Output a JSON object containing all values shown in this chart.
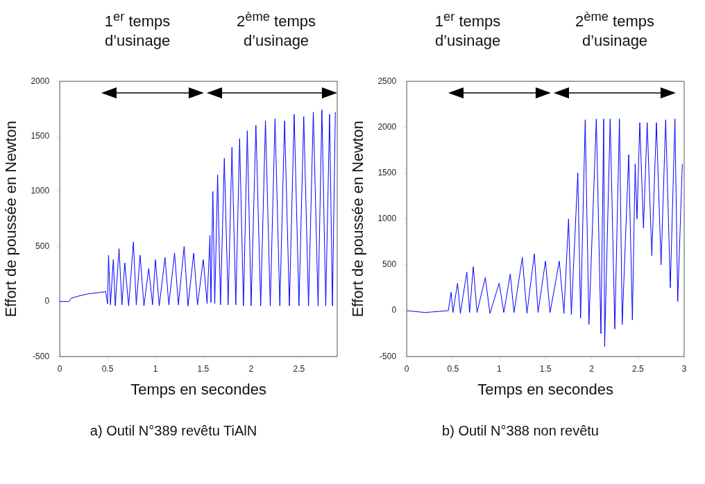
{
  "chart_data": [
    {
      "type": "line",
      "xlabel": "Temps en secondes",
      "ylabel": "Effort de poussée en Newton",
      "color": "#0000ff",
      "grid": false,
      "marker": "none",
      "xlim": [
        0,
        2.9
      ],
      "ylim": [
        -500,
        2000
      ],
      "xticks": [
        0,
        0.5,
        1,
        1.5,
        2,
        2.5
      ],
      "yticks": [
        -500,
        0,
        500,
        1000,
        1500,
        2000
      ],
      "annotations": [
        "1$^{er}$ temps d’usinage",
        "2$^{ème}$ temps d’usinage",
        "a) Outil N°389 revêtu TiAlN"
      ],
      "x": [
        0,
        0.1,
        0.12,
        0.2,
        0.3,
        0.4,
        0.48,
        0.5,
        0.51,
        0.53,
        0.56,
        0.58,
        0.62,
        0.65,
        0.68,
        0.72,
        0.77,
        0.8,
        0.84,
        0.88,
        0.93,
        0.97,
        1.0,
        1.04,
        1.1,
        1.14,
        1.2,
        1.24,
        1.3,
        1.34,
        1.4,
        1.44,
        1.5,
        1.54,
        1.57,
        1.58,
        1.6,
        1.62,
        1.65,
        1.68,
        1.72,
        1.76,
        1.8,
        1.84,
        1.88,
        1.92,
        1.96,
        2.0,
        2.05,
        2.1,
        2.15,
        2.2,
        2.25,
        2.3,
        2.35,
        2.4,
        2.45,
        2.5,
        2.55,
        2.6,
        2.65,
        2.7,
        2.74,
        2.78,
        2.82,
        2.85,
        2.88
      ],
      "values": [
        0,
        0,
        30,
        50,
        70,
        80,
        90,
        -20,
        420,
        -30,
        380,
        -40,
        480,
        -30,
        350,
        -40,
        540,
        -30,
        420,
        -40,
        300,
        -30,
        380,
        -40,
        400,
        -30,
        440,
        -30,
        500,
        -40,
        440,
        -30,
        380,
        -20,
        600,
        -10,
        1000,
        -20,
        1150,
        -30,
        1300,
        -30,
        1400,
        -30,
        1480,
        -40,
        1550,
        -40,
        1600,
        -40,
        1640,
        -40,
        1660,
        -40,
        1640,
        -40,
        1700,
        -40,
        1680,
        -40,
        1720,
        -40,
        1740,
        -40,
        1700,
        -40,
        1720
      ]
    },
    {
      "type": "line",
      "xlabel": "Temps en secondes",
      "ylabel": "Effort de poussée en Newton",
      "color": "#0000ff",
      "grid": false,
      "marker": "none",
      "xlim": [
        0,
        3
      ],
      "ylim": [
        -500,
        2500
      ],
      "xticks": [
        0,
        0.5,
        1,
        1.5,
        2,
        2.5,
        3
      ],
      "yticks": [
        -500,
        0,
        500,
        1000,
        1500,
        2000,
        2500
      ],
      "annotations": [
        "1$^{er}$ temps d’usinage",
        "2$^{ème}$ temps d’usinage",
        "b) Outil N°388 non revêtu"
      ],
      "x": [
        0,
        0.2,
        0.45,
        0.48,
        0.5,
        0.55,
        0.58,
        0.65,
        0.68,
        0.72,
        0.76,
        0.85,
        0.9,
        1.0,
        1.05,
        1.12,
        1.16,
        1.25,
        1.3,
        1.38,
        1.42,
        1.5,
        1.55,
        1.65,
        1.7,
        1.75,
        1.78,
        1.85,
        1.88,
        1.93,
        1.97,
        2.05,
        2.1,
        2.13,
        2.14,
        2.2,
        2.25,
        2.3,
        2.33,
        2.4,
        2.44,
        2.47,
        2.49,
        2.52,
        2.56,
        2.6,
        2.65,
        2.7,
        2.75,
        2.8,
        2.85,
        2.9,
        2.93,
        2.98
      ],
      "values": [
        0,
        -20,
        0,
        200,
        -20,
        300,
        -30,
        420,
        -20,
        480,
        -20,
        360,
        -30,
        300,
        -20,
        400,
        -20,
        580,
        -30,
        620,
        -20,
        540,
        -20,
        540,
        -30,
        1000,
        -40,
        1500,
        -80,
        2080,
        -150,
        2090,
        -250,
        2090,
        -390,
        2090,
        -200,
        2090,
        -150,
        1700,
        -100,
        1600,
        1000,
        2050,
        900,
        2050,
        600,
        2050,
        500,
        2080,
        250,
        2090,
        100,
        1600
      ]
    }
  ]
}
